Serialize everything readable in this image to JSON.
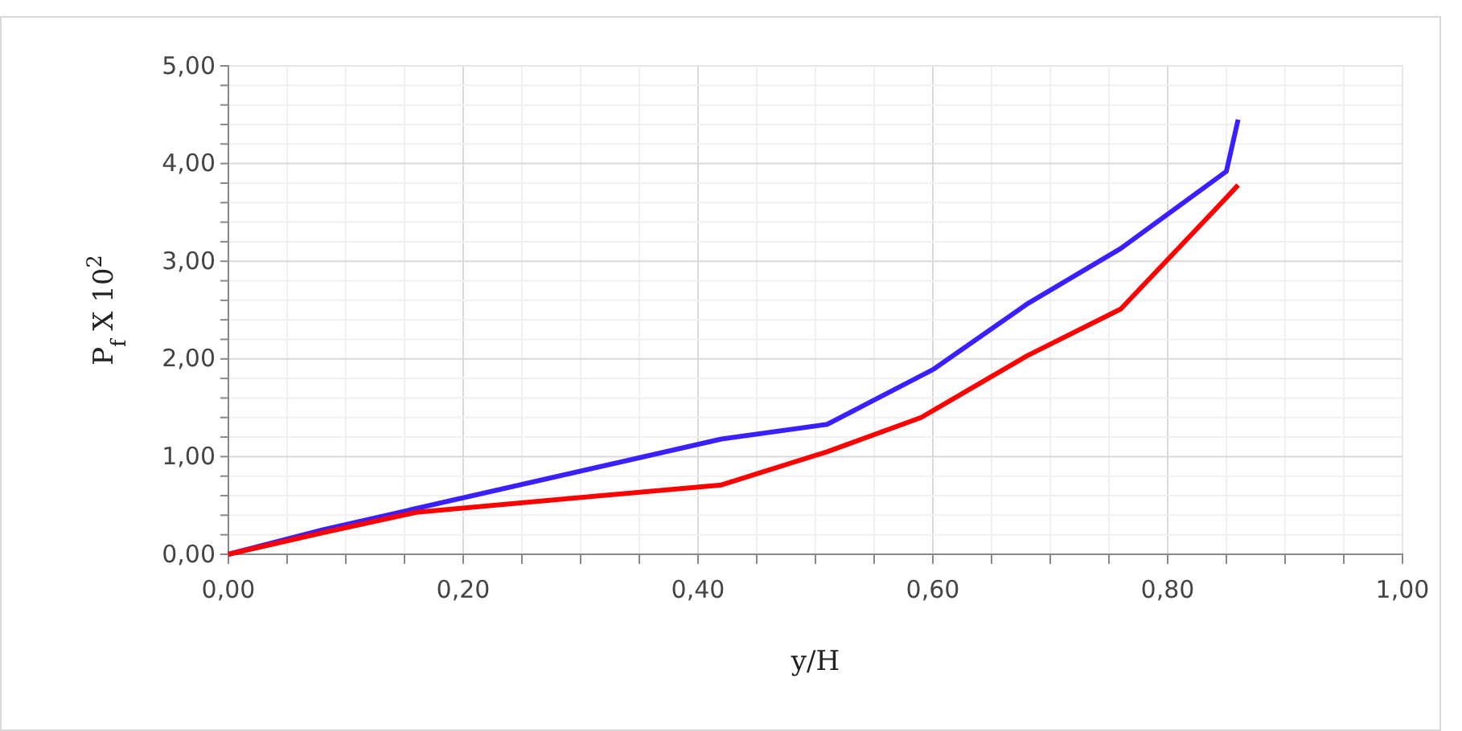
{
  "chart_data": {
    "type": "line",
    "xlabel": "y/H",
    "ylabel": "P$_{f}$ X 10$^{2}$",
    "grid": true,
    "marker": "none",
    "line_style": "solid",
    "xlim": [
      0,
      1
    ],
    "ylim": [
      0,
      5
    ],
    "xticks": [
      {
        "value": 0,
        "label": "0,00"
      },
      {
        "value": 0.05,
        "label": null
      },
      {
        "value": 0.1,
        "label": null
      },
      {
        "value": 0.15,
        "label": null
      },
      {
        "value": 0.2,
        "label": "0,20"
      },
      {
        "value": 0.25,
        "label": null
      },
      {
        "value": 0.3,
        "label": null
      },
      {
        "value": 0.35,
        "label": null
      },
      {
        "value": 0.4,
        "label": "0,40"
      },
      {
        "value": 0.45,
        "label": null
      },
      {
        "value": 0.5,
        "label": null
      },
      {
        "value": 0.55,
        "label": null
      },
      {
        "value": 0.6,
        "label": "0,60"
      },
      {
        "value": 0.65,
        "label": null
      },
      {
        "value": 0.7,
        "label": null
      },
      {
        "value": 0.75,
        "label": null
      },
      {
        "value": 0.8,
        "label": "0,80"
      },
      {
        "value": 0.85,
        "label": null
      },
      {
        "value": 0.9,
        "label": null
      },
      {
        "value": 0.95,
        "label": null
      },
      {
        "value": 1,
        "label": "1,00"
      }
    ],
    "yticks": [
      {
        "value": 0,
        "label": "0,00"
      },
      {
        "value": 0.2,
        "label": null
      },
      {
        "value": 0.4,
        "label": null
      },
      {
        "value": 0.6,
        "label": null
      },
      {
        "value": 0.8,
        "label": null
      },
      {
        "value": 1,
        "label": "1,00"
      },
      {
        "value": 1.2,
        "label": null
      },
      {
        "value": 1.4,
        "label": null
      },
      {
        "value": 1.6,
        "label": null
      },
      {
        "value": 1.8,
        "label": null
      },
      {
        "value": 2,
        "label": "2,00"
      },
      {
        "value": 2.2,
        "label": null
      },
      {
        "value": 2.4,
        "label": null
      },
      {
        "value": 2.6,
        "label": null
      },
      {
        "value": 2.8,
        "label": null
      },
      {
        "value": 3,
        "label": "3,00"
      },
      {
        "value": 3.2,
        "label": null
      },
      {
        "value": 3.4,
        "label": null
      },
      {
        "value": 3.6,
        "label": null
      },
      {
        "value": 3.8,
        "label": null
      },
      {
        "value": 4,
        "label": "4,00"
      },
      {
        "value": 4.2,
        "label": null
      },
      {
        "value": 4.4,
        "label": null
      },
      {
        "value": 4.6,
        "label": null
      },
      {
        "value": 4.8,
        "label": null
      },
      {
        "value": 5,
        "label": "5,00"
      }
    ],
    "series": [
      {
        "color": "#3a1fff",
        "x": [
          0,
          0.08,
          0.42,
          0.51,
          0.6,
          0.68,
          0.76,
          0.85,
          0.86
        ],
        "values": [
          0,
          0.25,
          1.18,
          1.33,
          1.89,
          2.56,
          3.13,
          3.92,
          4.45
        ]
      },
      {
        "color": "#ff0000",
        "x": [
          0,
          0.08,
          0.16,
          0.42,
          0.51,
          0.59,
          0.68,
          0.76,
          0.85,
          0.86
        ],
        "values": [
          0,
          0.22,
          0.43,
          0.71,
          1.05,
          1.4,
          2.03,
          2.51,
          3.65,
          3.78
        ]
      }
    ]
  }
}
